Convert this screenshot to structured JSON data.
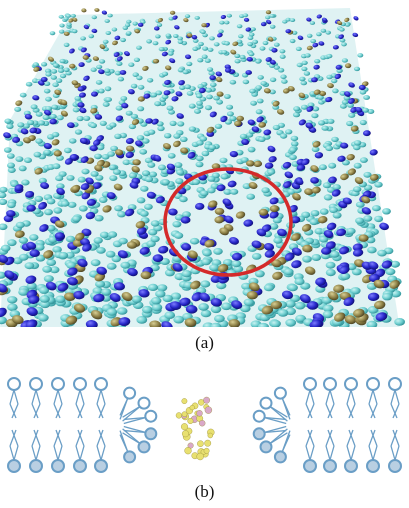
{
  "figure": {
    "panel_a": {
      "label": "(a)",
      "highlight_color": "#d42a2a",
      "lipid_tail_color": "#6fcfd0",
      "headgroup_colors": [
        "#2626c9",
        "#8c7f45"
      ]
    },
    "panel_b": {
      "label": "(b)",
      "lipid_color": "#6a9ec6",
      "lipid_head_fill": "#ffffff",
      "peptide_colors": [
        "#e8e070",
        "#d9a8c8"
      ]
    }
  }
}
